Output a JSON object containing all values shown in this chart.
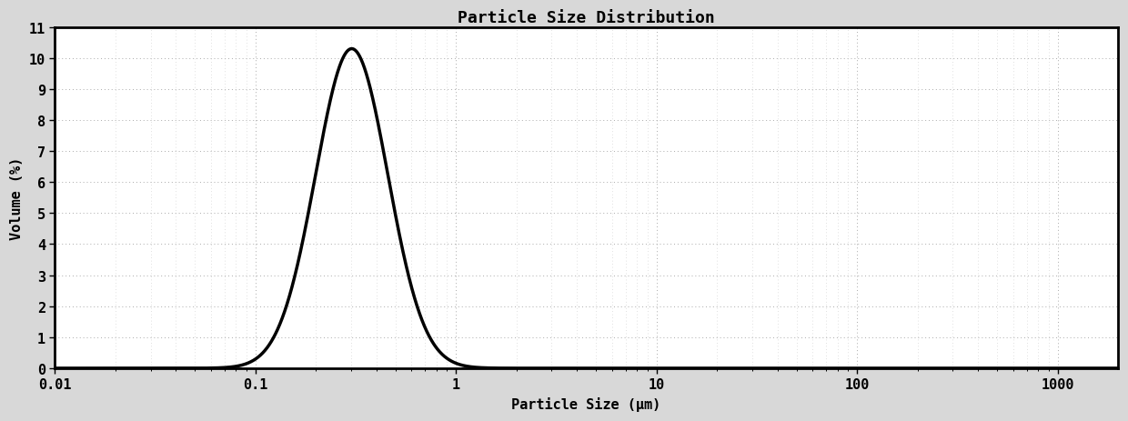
{
  "title": "Particle Size Distribution",
  "xlabel": "Particle Size (μm)",
  "ylabel": "Volume (%)",
  "ylim": [
    0,
    11
  ],
  "yticks": [
    0,
    1,
    2,
    3,
    4,
    5,
    6,
    7,
    8,
    9,
    10,
    11
  ],
  "xticks_log": [
    -2,
    -1,
    0,
    1,
    2,
    3
  ],
  "xtick_labels": [
    "0.01",
    "0.1",
    "1",
    "10",
    "100",
    "1000"
  ],
  "curve_peak_x_log": -0.52,
  "curve_peak_y": 10.3,
  "curve_sigma_log": 0.18,
  "curve_skew": 0.0,
  "background_color": "#d8d8d8",
  "plot_bg_color": "#ffffff",
  "line_color": "#000000",
  "line_width": 2.5,
  "grid_color": "#aaaaaa",
  "title_fontsize": 13,
  "label_fontsize": 11,
  "tick_fontsize": 11
}
